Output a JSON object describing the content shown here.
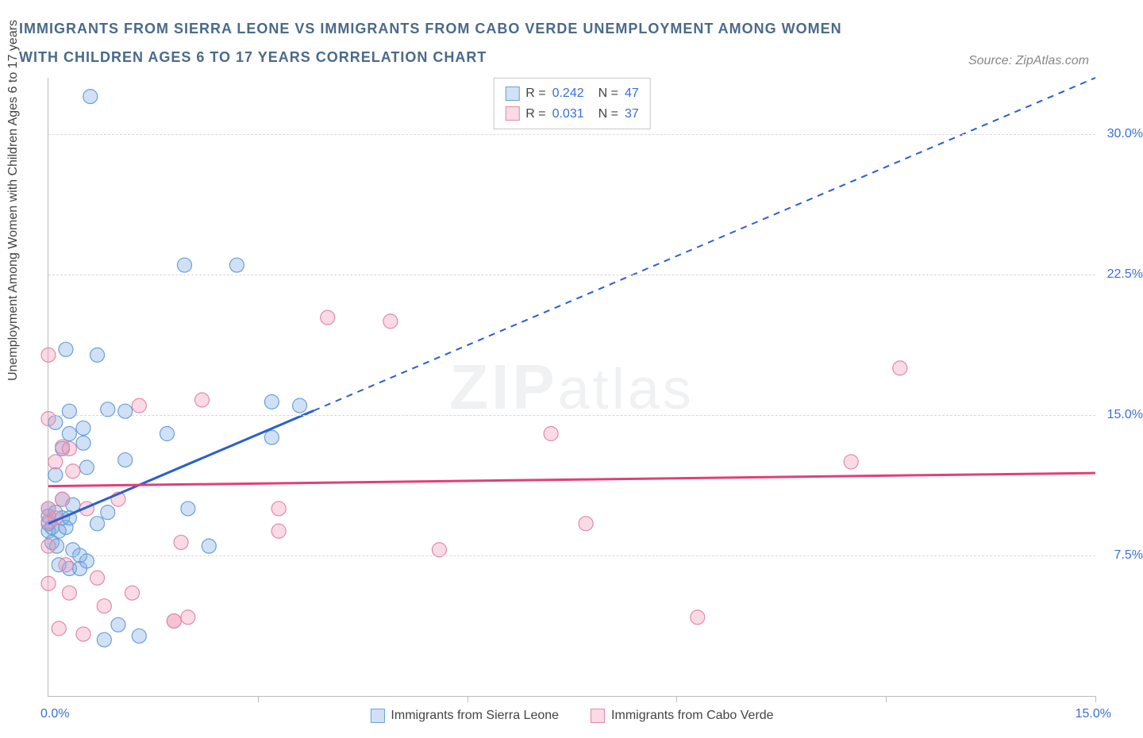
{
  "title": "IMMIGRANTS FROM SIERRA LEONE VS IMMIGRANTS FROM CABO VERDE UNEMPLOYMENT AMONG WOMEN WITH CHILDREN AGES 6 TO 17 YEARS CORRELATION CHART",
  "source": "Source: ZipAtlas.com",
  "ylabel": "Unemployment Among Women with Children Ages 6 to 17 years",
  "watermark": "ZIPatlas",
  "chart": {
    "type": "scatter",
    "xlim": [
      0,
      15.0
    ],
    "ylim": [
      0,
      33.0
    ],
    "x_ticks": [
      3.0,
      6.0,
      9.0,
      12.0,
      15.0
    ],
    "x_tick_labels": {
      "left": "0.0%",
      "right": "15.0%"
    },
    "y_gridlines": [
      7.5,
      15.0,
      22.5,
      30.0
    ],
    "y_tick_labels": [
      "7.5%",
      "15.0%",
      "22.5%",
      "30.0%"
    ],
    "background_color": "#ffffff",
    "grid_color": "#d8d8d8",
    "axis_color": "#bbbbbb",
    "tick_label_color": "#3a6fd8",
    "series": [
      {
        "name": "Immigrants from Sierra Leone",
        "color_fill": "rgba(120,170,230,0.35)",
        "color_stroke": "#6a9fd8",
        "line_color": "#2a5fcf",
        "R": "0.242",
        "N": "47",
        "trend": {
          "x1": 0.0,
          "y1": 9.2,
          "x2": 15.0,
          "y2": 33.0,
          "solid_until_x": 3.8
        },
        "marker_radius": 9,
        "points": [
          [
            0.0,
            8.8
          ],
          [
            0.0,
            9.2
          ],
          [
            0.0,
            9.6
          ],
          [
            0.0,
            10.0
          ],
          [
            0.05,
            8.2
          ],
          [
            0.05,
            9.0
          ],
          [
            0.1,
            9.8
          ],
          [
            0.1,
            11.8
          ],
          [
            0.1,
            14.6
          ],
          [
            0.12,
            8.0
          ],
          [
            0.15,
            7.0
          ],
          [
            0.15,
            8.8
          ],
          [
            0.2,
            9.5
          ],
          [
            0.2,
            10.5
          ],
          [
            0.2,
            13.2
          ],
          [
            0.25,
            9.0
          ],
          [
            0.25,
            18.5
          ],
          [
            0.3,
            6.8
          ],
          [
            0.3,
            9.5
          ],
          [
            0.3,
            14.0
          ],
          [
            0.3,
            15.2
          ],
          [
            0.35,
            7.8
          ],
          [
            0.35,
            10.2
          ],
          [
            0.45,
            6.8
          ],
          [
            0.45,
            7.5
          ],
          [
            0.5,
            13.5
          ],
          [
            0.5,
            14.3
          ],
          [
            0.55,
            7.2
          ],
          [
            0.55,
            12.2
          ],
          [
            0.6,
            32.0
          ],
          [
            0.7,
            9.2
          ],
          [
            0.7,
            18.2
          ],
          [
            0.8,
            3.0
          ],
          [
            0.85,
            15.3
          ],
          [
            0.85,
            9.8
          ],
          [
            1.0,
            3.8
          ],
          [
            1.1,
            12.6
          ],
          [
            1.1,
            15.2
          ],
          [
            1.3,
            3.2
          ],
          [
            1.7,
            14.0
          ],
          [
            1.95,
            23.0
          ],
          [
            2.0,
            10.0
          ],
          [
            2.3,
            8.0
          ],
          [
            2.7,
            23.0
          ],
          [
            3.2,
            13.8
          ],
          [
            3.6,
            15.5
          ],
          [
            3.2,
            15.7
          ]
        ]
      },
      {
        "name": "Immigrants from Cabo Verde",
        "color_fill": "rgba(240,150,180,0.35)",
        "color_stroke": "#e08aa8",
        "line_color": "#e23f78",
        "R": "0.031",
        "N": "37",
        "trend": {
          "x1": 0.0,
          "y1": 11.2,
          "x2": 15.0,
          "y2": 11.9,
          "solid_until_x": 15.0
        },
        "marker_radius": 9,
        "points": [
          [
            0.0,
            6.0
          ],
          [
            0.0,
            8.0
          ],
          [
            0.0,
            9.3
          ],
          [
            0.0,
            10.0
          ],
          [
            0.0,
            14.8
          ],
          [
            0.0,
            18.2
          ],
          [
            0.1,
            9.5
          ],
          [
            0.1,
            12.5
          ],
          [
            0.15,
            3.6
          ],
          [
            0.2,
            13.3
          ],
          [
            0.2,
            10.5
          ],
          [
            0.25,
            7.0
          ],
          [
            0.3,
            5.5
          ],
          [
            0.3,
            13.2
          ],
          [
            0.35,
            12.0
          ],
          [
            0.5,
            3.3
          ],
          [
            0.55,
            10.0
          ],
          [
            0.7,
            6.3
          ],
          [
            0.8,
            4.8
          ],
          [
            1.0,
            10.5
          ],
          [
            1.2,
            5.5
          ],
          [
            1.3,
            15.5
          ],
          [
            1.8,
            4.0
          ],
          [
            1.8,
            4.0
          ],
          [
            1.9,
            8.2
          ],
          [
            2.0,
            4.2
          ],
          [
            2.2,
            15.8
          ],
          [
            3.3,
            10.0
          ],
          [
            3.3,
            8.8
          ],
          [
            4.0,
            20.2
          ],
          [
            4.9,
            20.0
          ],
          [
            5.6,
            7.8
          ],
          [
            7.2,
            14.0
          ],
          [
            7.7,
            9.2
          ],
          [
            9.3,
            4.2
          ],
          [
            11.5,
            12.5
          ],
          [
            12.2,
            17.5
          ]
        ]
      }
    ]
  },
  "bottom_legend": [
    "Immigrants from Sierra Leone",
    "Immigrants from Cabo Verde"
  ]
}
